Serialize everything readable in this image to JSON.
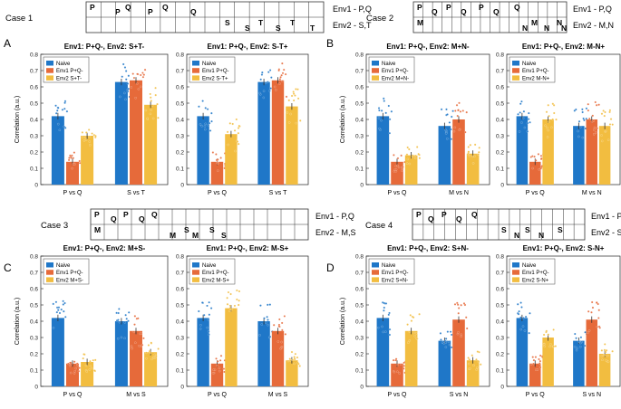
{
  "colors": {
    "naive": "#1f77c8",
    "env1": "#e66a3a",
    "env2": "#f2bd40"
  },
  "cases": [
    {
      "label": "Case 1",
      "env1": "Env1 - P,Q",
      "env2": "Env2 - S,T",
      "row1": [
        "P",
        "P",
        "Q",
        "P",
        "Q",
        "Q"
      ],
      "row2": [
        "S",
        "S",
        "T",
        "S",
        "T",
        "T"
      ]
    },
    {
      "label": "Case 2",
      "env1": "Env1 - P,Q",
      "env2": "Env2 - M,N",
      "row1": [
        "P",
        "Q",
        "P",
        "Q",
        "P",
        "Q",
        "Q"
      ],
      "row2": [
        "M",
        "N",
        "M",
        "N",
        "N",
        "N"
      ]
    },
    {
      "label": "Case 3",
      "env1": "Env1 - P,Q",
      "env2": "Env2 - M,S",
      "row1": [
        "P",
        "Q",
        "P",
        "Q",
        "Q"
      ],
      "row2": [
        "M",
        "M",
        "S",
        "M",
        "S",
        "S"
      ]
    },
    {
      "label": "Case 4",
      "env1": "Env1 - P,Q",
      "env2": "Env2 - S,N",
      "row1": [
        "P",
        "Q",
        "P",
        "Q",
        "Q"
      ],
      "row2": [
        "S",
        "N",
        "S",
        "N",
        "S"
      ]
    }
  ],
  "section_labels": [
    "A",
    "B",
    "C",
    "D"
  ],
  "chart_data": [
    {
      "type": "bar",
      "title": "Env1: P+Q-, Env2: S+T-",
      "ylabel": "Correlation (a.u.)",
      "ylim": [
        0,
        0.8
      ],
      "categories": [
        "P vs Q",
        "S vs T"
      ],
      "series": [
        {
          "name": "Naive",
          "values": [
            0.42,
            0.63
          ]
        },
        {
          "name": "Env1 P+Q-",
          "values": [
            0.14,
            0.64
          ]
        },
        {
          "name": "Env2 S+T-",
          "values": [
            0.3,
            0.49
          ]
        }
      ]
    },
    {
      "type": "bar",
      "title": "Env1: P+Q-, Env2: S-T+",
      "ylabel": "",
      "ylim": [
        0,
        0.8
      ],
      "categories": [
        "P vs Q",
        "S vs T"
      ],
      "series": [
        {
          "name": "Naive",
          "values": [
            0.42,
            0.63
          ]
        },
        {
          "name": "Env1 P+Q-",
          "values": [
            0.14,
            0.64
          ]
        },
        {
          "name": "Env2 S-T+",
          "values": [
            0.31,
            0.48
          ]
        }
      ]
    },
    {
      "type": "bar",
      "title": "Env1: P+Q-, Env2: M+N-",
      "ylabel": "Correlation (a.u.)",
      "ylim": [
        0,
        0.8
      ],
      "categories": [
        "P vs Q",
        "M vs N"
      ],
      "series": [
        {
          "name": "Naive",
          "values": [
            0.42,
            0.36
          ]
        },
        {
          "name": "Env1 P+Q-",
          "values": [
            0.14,
            0.4
          ]
        },
        {
          "name": "Env2 M+N-",
          "values": [
            0.18,
            0.19
          ]
        }
      ]
    },
    {
      "type": "bar",
      "title": "Env1: P+Q-, Env2: M-N+",
      "ylabel": "",
      "ylim": [
        0,
        0.8
      ],
      "categories": [
        "P vs Q",
        "M vs N"
      ],
      "series": [
        {
          "name": "Naive",
          "values": [
            0.42,
            0.36
          ]
        },
        {
          "name": "Env1 P+Q-",
          "values": [
            0.14,
            0.4
          ]
        },
        {
          "name": "Env2 M-N+",
          "values": [
            0.4,
            0.36
          ]
        }
      ]
    },
    {
      "type": "bar",
      "title": "Env1: P+Q-, Env2: M+S-",
      "ylabel": "Correlation (a.u.)",
      "ylim": [
        0,
        0.8
      ],
      "categories": [
        "P vs Q",
        "M vs S"
      ],
      "series": [
        {
          "name": "Naive",
          "values": [
            0.42,
            0.4
          ]
        },
        {
          "name": "Env1 P+Q-",
          "values": [
            0.14,
            0.34
          ]
        },
        {
          "name": "Env2 M+S-",
          "values": [
            0.15,
            0.21
          ]
        }
      ]
    },
    {
      "type": "bar",
      "title": "Env1: P+Q-, Env2: M-S+",
      "ylabel": "",
      "ylim": [
        0,
        0.8
      ],
      "categories": [
        "P vs Q",
        "M vs S"
      ],
      "series": [
        {
          "name": "Naive",
          "values": [
            0.42,
            0.4
          ]
        },
        {
          "name": "Env1 P+Q-",
          "values": [
            0.14,
            0.34
          ]
        },
        {
          "name": "Env2 M-S+",
          "values": [
            0.48,
            0.16
          ]
        }
      ]
    },
    {
      "type": "bar",
      "title": "Env1: P+Q-, Env2: S+N-",
      "ylabel": "Correlation (a.u.)",
      "ylim": [
        0,
        0.8
      ],
      "categories": [
        "P vs Q",
        "S vs N"
      ],
      "series": [
        {
          "name": "Naive",
          "values": [
            0.42,
            0.28
          ]
        },
        {
          "name": "Env1 P+Q-",
          "values": [
            0.14,
            0.41
          ]
        },
        {
          "name": "Env2 S+N-",
          "values": [
            0.34,
            0.16
          ]
        }
      ]
    },
    {
      "type": "bar",
      "title": "Env1: P+Q-, Env2: S-N+",
      "ylabel": "",
      "ylim": [
        0,
        0.8
      ],
      "categories": [
        "P vs Q",
        "S vs N"
      ],
      "series": [
        {
          "name": "Naive",
          "values": [
            0.42,
            0.28
          ]
        },
        {
          "name": "Env1 P+Q-",
          "values": [
            0.14,
            0.41
          ]
        },
        {
          "name": "Env2 S-N+",
          "values": [
            0.3,
            0.2
          ]
        }
      ]
    }
  ],
  "yticks": [
    "0",
    "0.1",
    "0.2",
    "0.3",
    "0.4",
    "0.5",
    "0.6",
    "0.7",
    "0.8"
  ]
}
